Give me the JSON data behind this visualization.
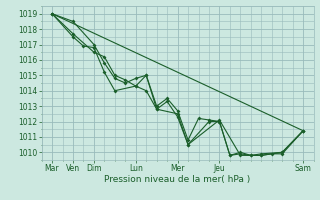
{
  "xlabel": "Pression niveau de la mer( hPa )",
  "ylim": [
    1009.5,
    1019.5
  ],
  "xlim": [
    0,
    13
  ],
  "yticks": [
    1010,
    1011,
    1012,
    1013,
    1014,
    1015,
    1016,
    1017,
    1018,
    1019
  ],
  "xtick_positions": [
    0.5,
    1.5,
    2.5,
    4.5,
    6.5,
    8.5,
    12.5
  ],
  "xtick_labels": [
    "Mar",
    "Ven",
    "Dim",
    "Lun",
    "Mer",
    "Jeu",
    "Sam"
  ],
  "bg_color": "#cce8e0",
  "grid_color": "#99bbbb",
  "line_color": "#1a5e2a",
  "trend_x": [
    0.5,
    12.5
  ],
  "trend_y": [
    1019.0,
    1011.4
  ],
  "series1_x": [
    0.5,
    1.5,
    2.0,
    2.5,
    3.0,
    3.5,
    4.5,
    5.0,
    5.5,
    6.5,
    7.0,
    8.5,
    9.5,
    10.5,
    11.5,
    12.5
  ],
  "series1_y": [
    1019.0,
    1017.5,
    1016.9,
    1016.8,
    1015.2,
    1014.0,
    1014.3,
    1015.0,
    1012.8,
    1012.5,
    1010.5,
    1012.1,
    1009.8,
    1009.8,
    1010.0,
    1011.4
  ],
  "series2_x": [
    0.5,
    1.5,
    2.5,
    3.0,
    3.5,
    4.0,
    4.5,
    5.0,
    5.5,
    6.0,
    6.5,
    7.0,
    7.5,
    8.0,
    8.5,
    9.0,
    9.5,
    10.0,
    10.5,
    11.5,
    12.5
  ],
  "series2_y": [
    1019.0,
    1018.5,
    1017.0,
    1015.8,
    1014.8,
    1014.5,
    1014.8,
    1015.0,
    1013.0,
    1013.5,
    1012.7,
    1010.8,
    1012.2,
    1012.1,
    1012.0,
    1009.8,
    1010.0,
    1009.8,
    1009.9,
    1010.0,
    1011.4
  ],
  "series3_x": [
    0.5,
    1.5,
    2.5,
    3.0,
    3.5,
    4.0,
    4.5,
    5.0,
    5.5,
    6.0,
    6.5,
    7.0,
    8.0,
    8.5,
    9.0,
    9.5,
    10.0,
    10.5,
    11.0,
    11.5,
    12.5
  ],
  "series3_y": [
    1019.0,
    1017.7,
    1016.5,
    1016.2,
    1015.0,
    1014.7,
    1014.3,
    1014.0,
    1012.8,
    1013.3,
    1012.3,
    1010.5,
    1012.0,
    1012.0,
    1009.8,
    1009.9,
    1009.8,
    1009.8,
    1009.9,
    1009.9,
    1011.4
  ]
}
